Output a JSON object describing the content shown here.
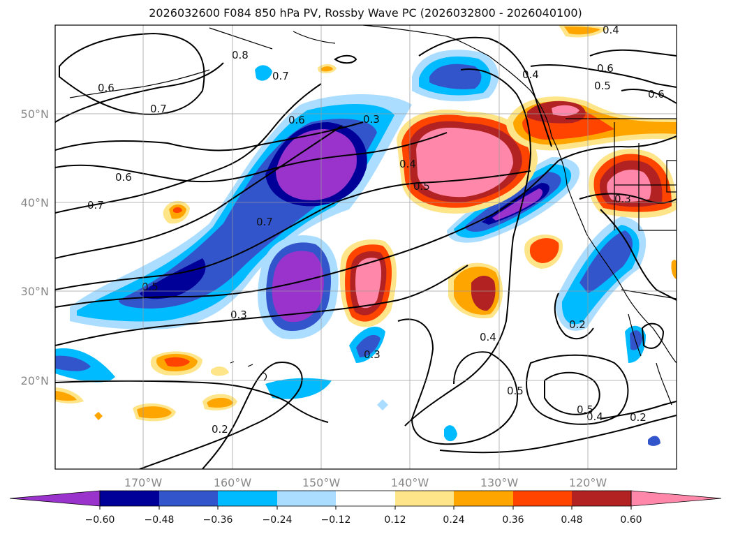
{
  "title": "2026032600 F084 850 hPa PV, Rossby Wave PC (2026032800 - 2026040100)",
  "map": {
    "lon_ticks": [
      "170°W",
      "160°W",
      "150°W",
      "140°W",
      "130°W",
      "120°W"
    ],
    "lat_ticks": [
      "50°N",
      "40°N",
      "30°N",
      "20°N"
    ],
    "grid": true,
    "contour_labels": [
      "0.6",
      "0.7",
      "0.6",
      "0.7",
      "0.8",
      "0.7",
      "0.6",
      "0.3",
      "0.4",
      "0.5",
      "0.7",
      "0.5",
      "0.3",
      "0.3",
      "0.4",
      "0.5",
      "0.5",
      "0.4",
      "0.2",
      "0.2",
      "0.2",
      "0.4",
      "0.6",
      "0.5",
      "0.6",
      "0.4",
      "0.3"
    ],
    "colors": {
      "neg_extreme": "#9933cc",
      "neg_048": "#000099",
      "neg_036": "#3355cc",
      "neg_024": "#00bbff",
      "neg_012": "#aaddff",
      "pos_012": "#ffe58a",
      "pos_024": "#ffa500",
      "pos_036": "#ff4400",
      "pos_048": "#b22222",
      "pos_extreme": "#ff88aa"
    }
  },
  "colorbar": {
    "labels": [
      "−0.60",
      "−0.48",
      "−0.36",
      "−0.24",
      "−0.12",
      "0.12",
      "0.24",
      "0.36",
      "0.48",
      "0.60"
    ],
    "colors": [
      "#9933cc",
      "#000099",
      "#3355cc",
      "#00bbff",
      "#aaddff",
      "#ffffff",
      "#ffe58a",
      "#ffa500",
      "#ff4400",
      "#b22222",
      "#ff88aa"
    ]
  }
}
